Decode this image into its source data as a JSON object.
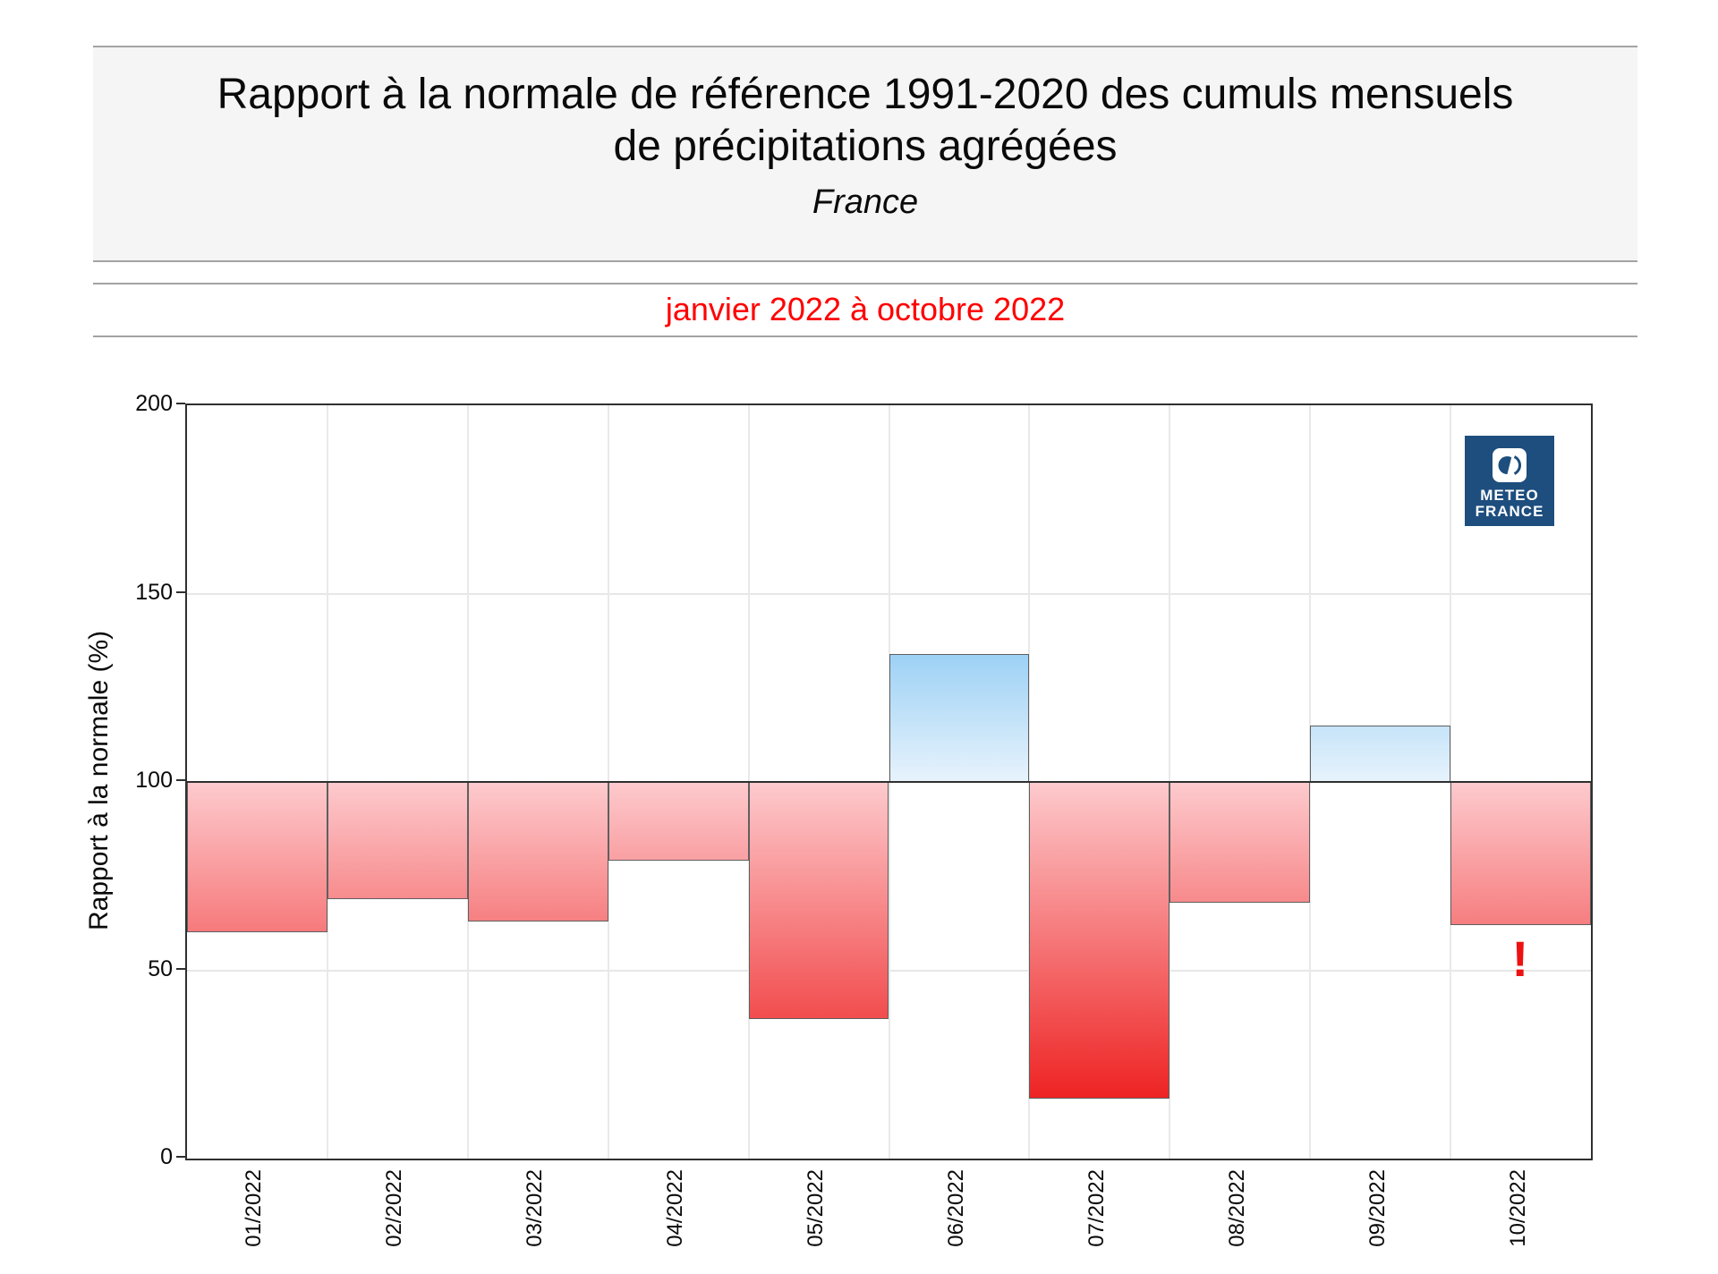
{
  "header": {
    "title_line1": "Rapport à la normale de référence 1991-2020 des cumuls mensuels",
    "title_line2": "de précipitations agrégées",
    "region": "France"
  },
  "subtitle": "janvier 2022 à octobre 2022",
  "logo": {
    "line1": "METEO",
    "line2": "FRANCE"
  },
  "chart_data": {
    "type": "bar",
    "title": "Rapport à la normale de référence 1991-2020 des cumuls mensuels de précipitations agrégées",
    "region": "France",
    "period": "janvier 2022 à octobre 2022",
    "categories": [
      "01/2022",
      "02/2022",
      "03/2022",
      "04/2022",
      "05/2022",
      "06/2022",
      "07/2022",
      "08/2022",
      "09/2022",
      "10/2022"
    ],
    "values": [
      60,
      69,
      63,
      79,
      37,
      134,
      16,
      68,
      115,
      62
    ],
    "baseline": 100,
    "ylabel": "Rapport à la normale (%)",
    "xlabel": "",
    "ylim": [
      0,
      200
    ],
    "yticks": [
      0,
      50,
      100,
      150,
      200
    ],
    "grid": true,
    "legend": "none",
    "annotation": {
      "text": "!",
      "category": "10/2022",
      "color": "#ee1111"
    },
    "colors": {
      "below_baseline_at_100": "#fdcacd",
      "below_baseline_at_0": "#eb0303",
      "above_baseline_at_100": "#e7f3fc",
      "above_baseline_at_200": "#0d8fe7",
      "bar_border": "#5f5f5f",
      "baseline_line": "#2f2f2f",
      "subtitle_red": "#ff0000",
      "logo_blue": "#1d4e7e"
    }
  }
}
